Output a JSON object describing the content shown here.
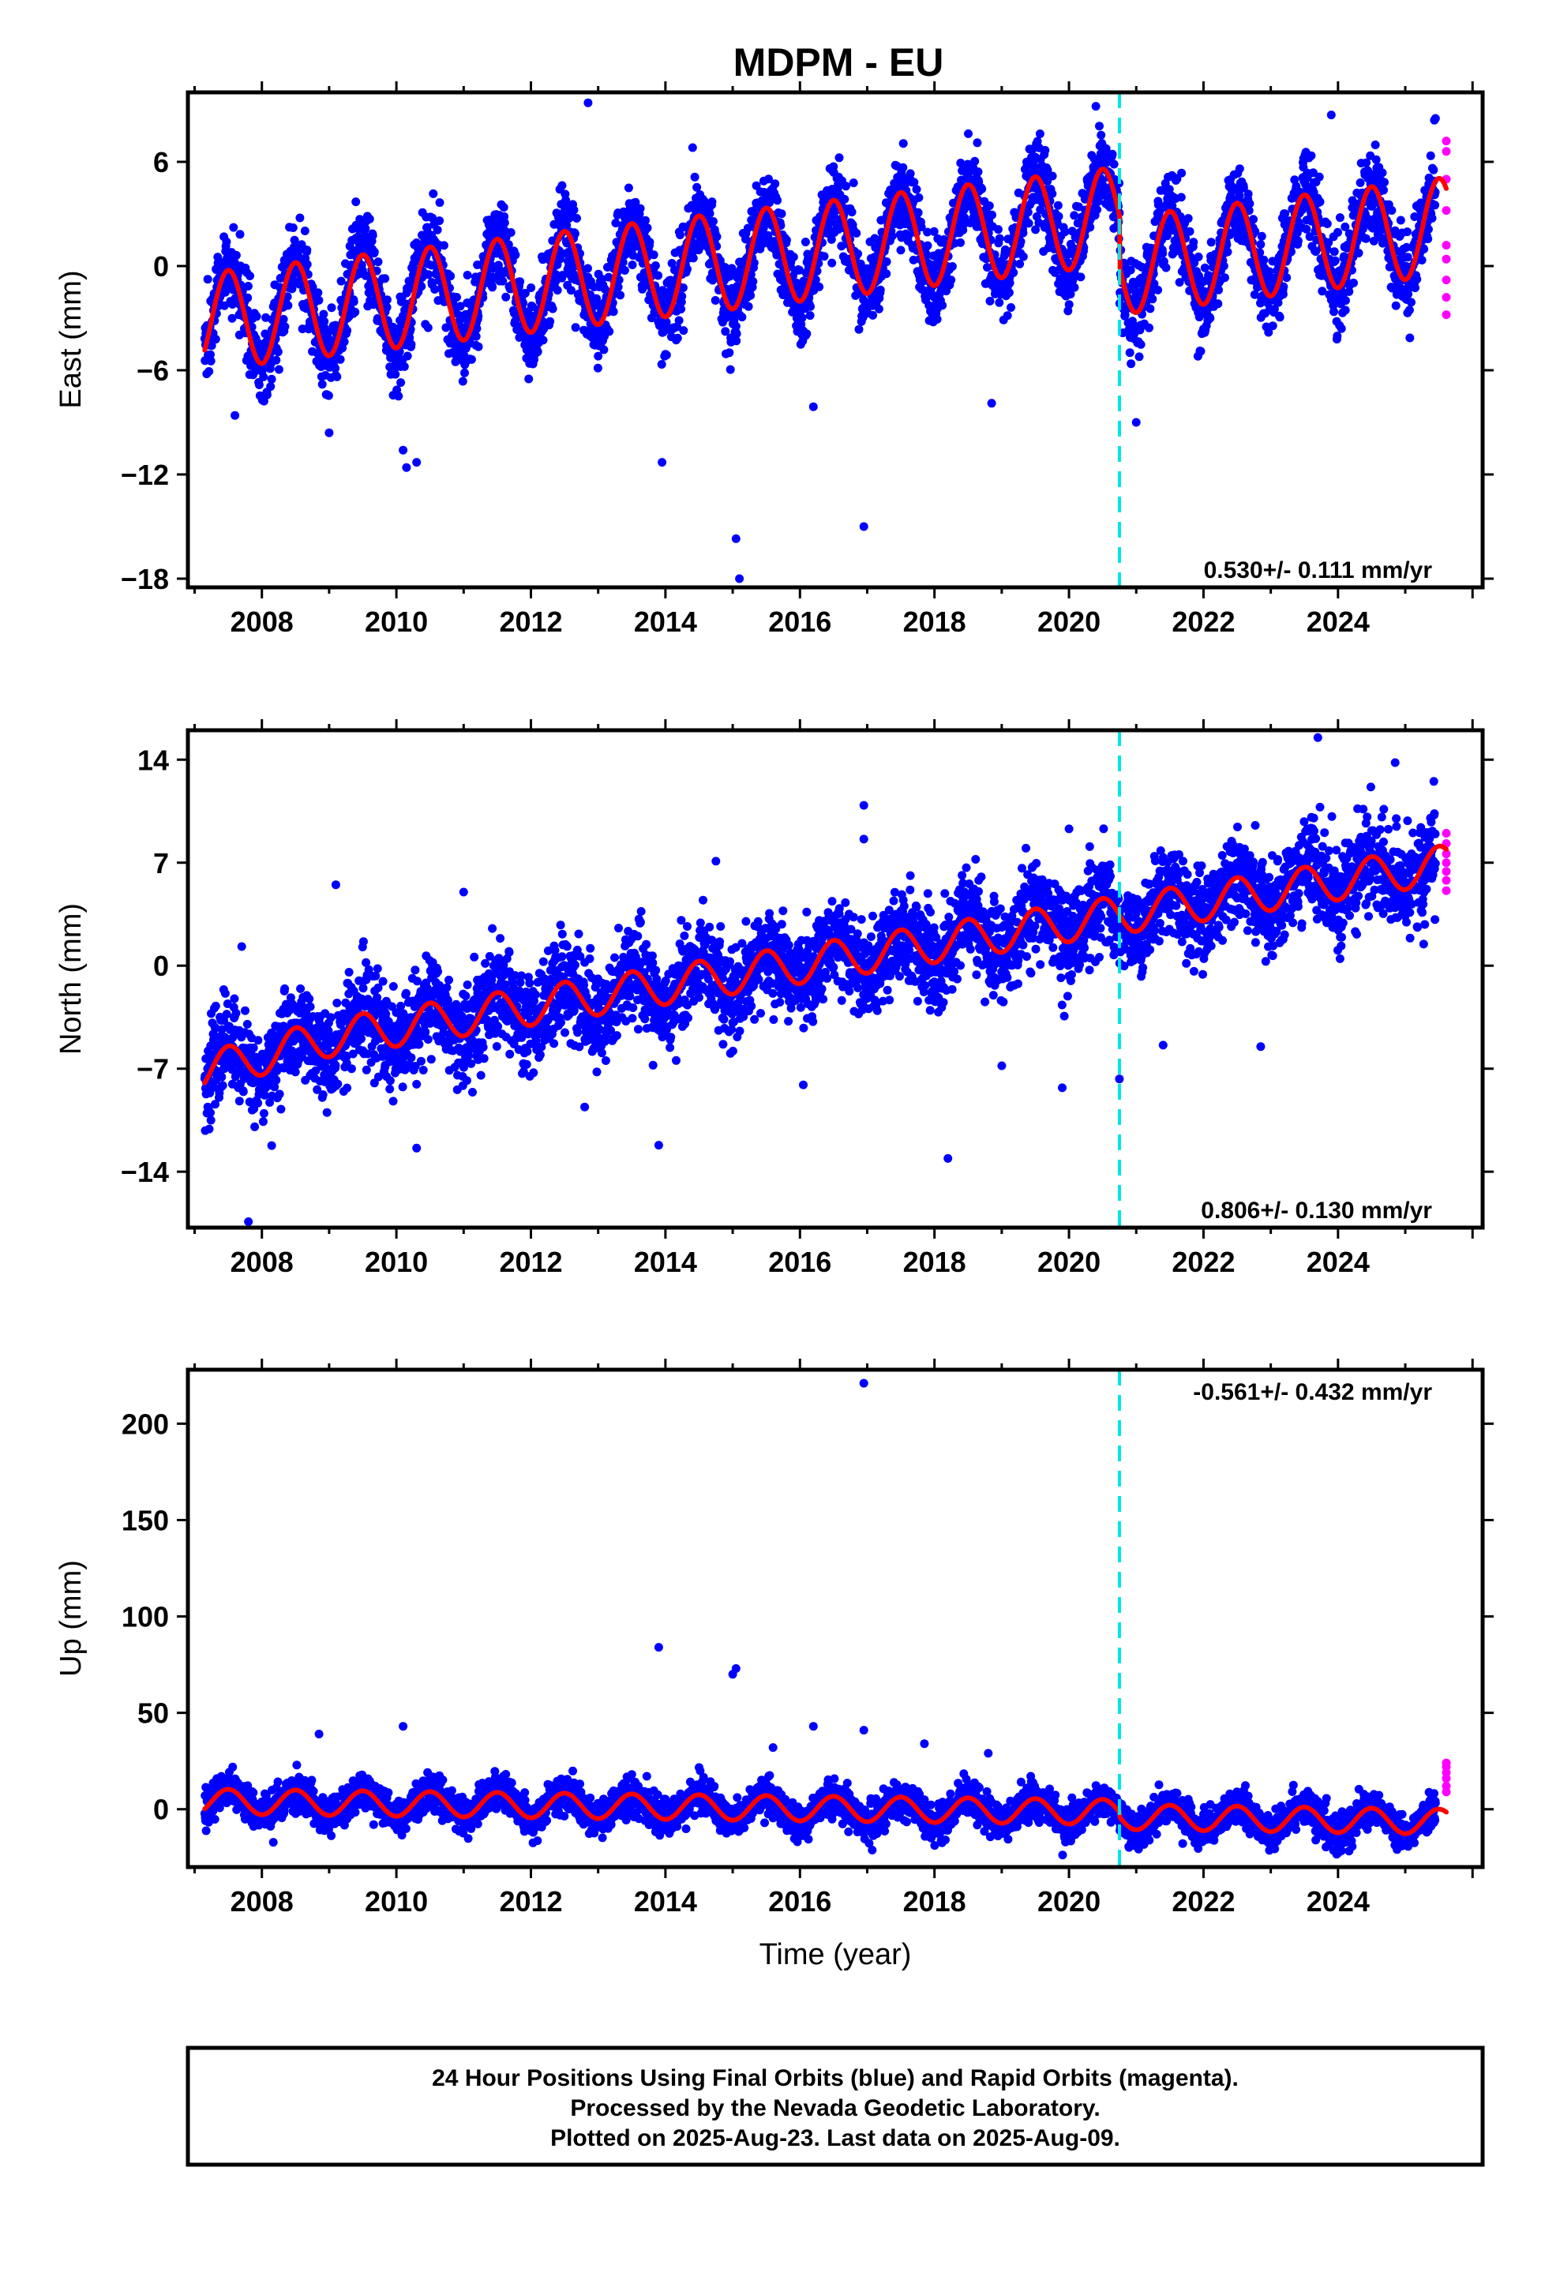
{
  "colors": {
    "final_orbits": "#0000ff",
    "rapid_orbits": "#ff00ff",
    "model_fit": "#ff0000",
    "event_line": "#00e5e5",
    "frame": "#000000"
  },
  "chart_data": {
    "type": "scatter",
    "title": "MDPM - EU",
    "xlabel": "Time (year)",
    "x_ticks": [
      "2008",
      "2010",
      "2012",
      "2014",
      "2016",
      "2018",
      "2020",
      "2022",
      "2024"
    ],
    "xlim": [
      2006.9,
      2026.15
    ],
    "event_line_x": 2020.75,
    "data_start": 2007.15,
    "final_end": 2025.45,
    "rapid_end": 2025.61,
    "panels": [
      {
        "id": "east",
        "ylabel": "East (mm)",
        "ylim": [
          -18.5,
          10
        ],
        "y_ticks": [
          6,
          0,
          -6,
          -12,
          -18
        ],
        "y_tick_labels": [
          "6",
          "0",
          "−6",
          "−12",
          "−18"
        ],
        "rate_text": "0.530+/- 0.111 mm/yr",
        "rate_position": "bottom-right",
        "annual_amplitude": 2.8,
        "trend_segments": [
          {
            "from": 2007.15,
            "to": 2020.75,
            "start": -3.2,
            "end": 2.9
          },
          {
            "from": 2020.75,
            "to": 2025.61,
            "start": 0.0,
            "end": 2.3
          }
        ],
        "scatter": 1.2,
        "rapid_values": [
          7.2,
          6.6,
          5.0,
          3.2,
          1.2,
          0.4,
          -0.8,
          -1.8,
          -2.8
        ],
        "outliers": [
          {
            "x": 2010.1,
            "y": -10.6
          },
          {
            "x": 2010.15,
            "y": -11.6
          },
          {
            "x": 2010.3,
            "y": -11.3
          },
          {
            "x": 2012.85,
            "y": 9.4
          },
          {
            "x": 2013.95,
            "y": -11.3
          },
          {
            "x": 2015.05,
            "y": -15.7
          },
          {
            "x": 2015.1,
            "y": -18.0
          },
          {
            "x": 2016.95,
            "y": -15.0
          },
          {
            "x": 2016.2,
            "y": -8.1
          },
          {
            "x": 2018.85,
            "y": -7.9
          },
          {
            "x": 2009.0,
            "y": -9.6
          },
          {
            "x": 2007.6,
            "y": -8.6
          },
          {
            "x": 2021.0,
            "y": -9.0
          },
          {
            "x": 2020.4,
            "y": 9.2
          },
          {
            "x": 2023.9,
            "y": 8.7
          }
        ]
      },
      {
        "id": "north",
        "ylabel": "North (mm)",
        "ylim": [
          -17.8,
          16
        ],
        "y_ticks": [
          14,
          7,
          0,
          -7,
          -14
        ],
        "y_tick_labels": [
          "14",
          "7",
          "0",
          "−7",
          "−14"
        ],
        "rate_text": "0.806+/- 0.130 mm/yr",
        "rate_position": "bottom-right",
        "annual_amplitude": 1.3,
        "trend_segments": [
          {
            "from": 2007.15,
            "to": 2009.0,
            "start": -7.2,
            "end": -4.9
          },
          {
            "from": 2009.0,
            "to": 2025.61,
            "start": -4.9,
            "end": 6.9
          }
        ],
        "scatter": 1.6,
        "rapid_values": [
          9.0,
          8.3,
          7.6,
          7.0,
          6.4,
          5.8,
          5.1
        ],
        "outliers": [
          {
            "x": 2007.7,
            "y": 1.3
          },
          {
            "x": 2009.1,
            "y": 5.5
          },
          {
            "x": 2011.0,
            "y": 5.0
          },
          {
            "x": 2016.95,
            "y": 10.9
          },
          {
            "x": 2016.95,
            "y": 8.6
          },
          {
            "x": 2014.75,
            "y": 7.1
          },
          {
            "x": 2012.8,
            "y": -9.6
          },
          {
            "x": 2013.9,
            "y": -12.2
          },
          {
            "x": 2010.3,
            "y": -12.4
          },
          {
            "x": 2018.2,
            "y": -13.1
          },
          {
            "x": 2019.9,
            "y": -8.3
          },
          {
            "x": 2020.75,
            "y": -7.7
          },
          {
            "x": 2007.8,
            "y": -17.4
          },
          {
            "x": 2023.7,
            "y": 15.5
          },
          {
            "x": 2024.85,
            "y": 13.8
          },
          {
            "x": 2020.0,
            "y": 9.3
          },
          {
            "x": 2022.85,
            "y": -5.5
          },
          {
            "x": 2019.0,
            "y": -6.8
          },
          {
            "x": 2016.05,
            "y": -8.1
          },
          {
            "x": 2021.4,
            "y": -5.4
          }
        ]
      },
      {
        "id": "up",
        "ylabel": "Up (mm)",
        "ylim": [
          -30,
          228
        ],
        "y_ticks": [
          200,
          150,
          100,
          50,
          0
        ],
        "y_tick_labels": [
          "200",
          "150",
          "100",
          "50",
          "0"
        ],
        "rate_text": "-0.561+/- 0.432 mm/yr",
        "rate_position": "top-right",
        "annual_amplitude": 6.5,
        "trend_segments": [
          {
            "from": 2007.15,
            "to": 2020.75,
            "start": 4.0,
            "end": -1.5
          },
          {
            "from": 2020.75,
            "to": 2025.61,
            "start": -4.0,
            "end": -6.5
          }
        ],
        "scatter": 4.5,
        "rapid_values": [
          24,
          22,
          19,
          16,
          12,
          9
        ],
        "outliers": [
          {
            "x": 2016.95,
            "y": 221
          },
          {
            "x": 2013.9,
            "y": 84
          },
          {
            "x": 2015.05,
            "y": 73
          },
          {
            "x": 2015.0,
            "y": 70
          },
          {
            "x": 2008.85,
            "y": 39
          },
          {
            "x": 2010.1,
            "y": 43
          },
          {
            "x": 2016.2,
            "y": 43
          },
          {
            "x": 2016.95,
            "y": 41
          },
          {
            "x": 2015.6,
            "y": 32
          },
          {
            "x": 2017.85,
            "y": 34
          },
          {
            "x": 2018.8,
            "y": 29
          }
        ]
      }
    ]
  },
  "caption": {
    "line1": "24 Hour Positions Using Final Orbits (blue) and Rapid Orbits (magenta).",
    "line2": "Processed by the Nevada Geodetic Laboratory.",
    "line3": "Plotted on 2025-Aug-23. Last data on 2025-Aug-09."
  }
}
